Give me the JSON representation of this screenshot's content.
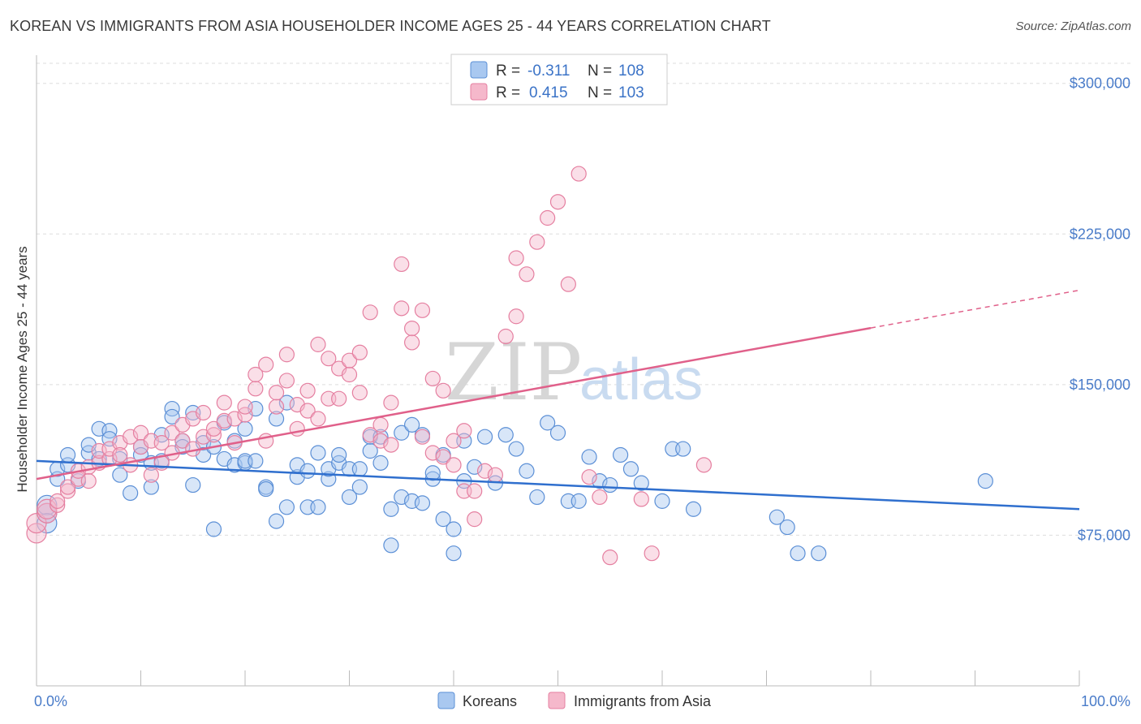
{
  "title": "KOREAN VS IMMIGRANTS FROM ASIA HOUSEHOLDER INCOME AGES 25 - 44 YEARS CORRELATION CHART",
  "source": "Source: ZipAtlas.com",
  "watermark": {
    "zip": "ZIP",
    "atlas": "atlas"
  },
  "legend": {
    "rows": [
      {
        "r_label": "R =",
        "r_value": "-0.311",
        "n_label": "N =",
        "n_value": "108"
      },
      {
        "r_label": "R =",
        "r_value": "0.415",
        "n_label": "N =",
        "n_value": "103"
      }
    ]
  },
  "colors": {
    "blue_fill": "#a9c8f0",
    "blue_stroke": "#5b8fd6",
    "blue_line": "#2f6fce",
    "pink_fill": "#f5b8cb",
    "pink_stroke": "#e57fa0",
    "pink_line": "#e0608a",
    "grid": "#dddddd",
    "tick_label": "#4a7cc9"
  },
  "chart_data": {
    "type": "scatter",
    "ylabel": "Householder Income Ages 25 - 44 years",
    "xlabel": "",
    "xlim": [
      0,
      100
    ],
    "ylim": [
      0,
      310000
    ],
    "y_ticks": [
      75000,
      150000,
      225000,
      300000
    ],
    "y_tick_labels": [
      "$75,000",
      "$150,000",
      "$225,000",
      "$300,000"
    ],
    "x_tick_labels": [
      "0.0%",
      "100.0%"
    ],
    "grid": "horizontal dashed",
    "legend_position": "top-center",
    "series": [
      {
        "name": "Koreans",
        "color": "#a9c8f0",
        "trend": {
          "x0": 0,
          "y0": 112000,
          "x1": 100,
          "y1": 88000,
          "dashed_from_x": null
        },
        "points": [
          [
            1,
            86000
          ],
          [
            1,
            90000
          ],
          [
            1,
            81000
          ],
          [
            2,
            103000
          ],
          [
            2,
            108000
          ],
          [
            3,
            110000
          ],
          [
            3,
            115000
          ],
          [
            4,
            102000
          ],
          [
            5,
            116000
          ],
          [
            5,
            120000
          ],
          [
            6,
            128000
          ],
          [
            6,
            113000
          ],
          [
            7,
            127000
          ],
          [
            7,
            123000
          ],
          [
            8,
            105000
          ],
          [
            8,
            113000
          ],
          [
            9,
            96000
          ],
          [
            10,
            119000
          ],
          [
            10,
            115000
          ],
          [
            11,
            111000
          ],
          [
            11,
            99000
          ],
          [
            12,
            125000
          ],
          [
            12,
            112000
          ],
          [
            13,
            138000
          ],
          [
            13,
            134000
          ],
          [
            14,
            122000
          ],
          [
            14,
            119000
          ],
          [
            15,
            136000
          ],
          [
            15,
            100000
          ],
          [
            16,
            121000
          ],
          [
            16,
            115000
          ],
          [
            17,
            119000
          ],
          [
            17,
            78000
          ],
          [
            18,
            113000
          ],
          [
            18,
            131000
          ],
          [
            19,
            122000
          ],
          [
            19,
            110000
          ],
          [
            20,
            111000
          ],
          [
            20,
            112000
          ],
          [
            20,
            128000
          ],
          [
            21,
            112000
          ],
          [
            21,
            138000
          ],
          [
            22,
            99000
          ],
          [
            22,
            98000
          ],
          [
            23,
            82000
          ],
          [
            23,
            133000
          ],
          [
            24,
            89000
          ],
          [
            24,
            141000
          ],
          [
            25,
            104000
          ],
          [
            25,
            110000
          ],
          [
            26,
            89000
          ],
          [
            26,
            107000
          ],
          [
            27,
            89000
          ],
          [
            27,
            116000
          ],
          [
            28,
            103000
          ],
          [
            28,
            108000
          ],
          [
            29,
            111000
          ],
          [
            29,
            115000
          ],
          [
            30,
            94000
          ],
          [
            30,
            108000
          ],
          [
            31,
            108000
          ],
          [
            31,
            99000
          ],
          [
            32,
            117000
          ],
          [
            32,
            124000
          ],
          [
            33,
            111000
          ],
          [
            33,
            124000
          ],
          [
            34,
            88000
          ],
          [
            34,
            70000
          ],
          [
            35,
            94000
          ],
          [
            35,
            126000
          ],
          [
            36,
            92000
          ],
          [
            36,
            130000
          ],
          [
            37,
            91000
          ],
          [
            37,
            125000
          ],
          [
            38,
            103000
          ],
          [
            38,
            106000
          ],
          [
            39,
            83000
          ],
          [
            39,
            115000
          ],
          [
            40,
            66000
          ],
          [
            40,
            78000
          ],
          [
            41,
            102000
          ],
          [
            41,
            122000
          ],
          [
            42,
            109000
          ],
          [
            43,
            124000
          ],
          [
            44,
            101000
          ],
          [
            45,
            125000
          ],
          [
            46,
            118000
          ],
          [
            47,
            107000
          ],
          [
            48,
            94000
          ],
          [
            49,
            131000
          ],
          [
            50,
            126000
          ],
          [
            51,
            92000
          ],
          [
            52,
            92000
          ],
          [
            53,
            114000
          ],
          [
            54,
            102000
          ],
          [
            55,
            100000
          ],
          [
            56,
            115000
          ],
          [
            57,
            108000
          ],
          [
            58,
            101000
          ],
          [
            60,
            92000
          ],
          [
            61,
            118000
          ],
          [
            62,
            118000
          ],
          [
            63,
            88000
          ],
          [
            71,
            84000
          ],
          [
            72,
            79000
          ],
          [
            73,
            66000
          ],
          [
            75,
            66000
          ],
          [
            91,
            102000
          ]
        ]
      },
      {
        "name": "Immigrants from Asia",
        "color": "#f5b8cb",
        "trend": {
          "x0": 0,
          "y0": 103000,
          "x1": 100,
          "y1": 197000,
          "dashed_from_x": 80
        },
        "points": [
          [
            0,
            76000
          ],
          [
            0,
            81000
          ],
          [
            1,
            86000
          ],
          [
            1,
            88000
          ],
          [
            2,
            90000
          ],
          [
            2,
            92000
          ],
          [
            3,
            97000
          ],
          [
            3,
            99000
          ],
          [
            4,
            103000
          ],
          [
            4,
            107000
          ],
          [
            5,
            109000
          ],
          [
            5,
            102000
          ],
          [
            6,
            111000
          ],
          [
            6,
            117000
          ],
          [
            7,
            113000
          ],
          [
            7,
            118000
          ],
          [
            8,
            121000
          ],
          [
            8,
            115000
          ],
          [
            9,
            124000
          ],
          [
            9,
            110000
          ],
          [
            10,
            126000
          ],
          [
            10,
            119000
          ],
          [
            11,
            122000
          ],
          [
            11,
            105000
          ],
          [
            12,
            121000
          ],
          [
            12,
            111000
          ],
          [
            13,
            116000
          ],
          [
            13,
            126000
          ],
          [
            14,
            122000
          ],
          [
            14,
            130000
          ],
          [
            15,
            118000
          ],
          [
            15,
            133000
          ],
          [
            16,
            124000
          ],
          [
            16,
            136000
          ],
          [
            17,
            125000
          ],
          [
            17,
            128000
          ],
          [
            18,
            132000
          ],
          [
            18,
            141000
          ],
          [
            19,
            121000
          ],
          [
            19,
            133000
          ],
          [
            20,
            135000
          ],
          [
            20,
            139000
          ],
          [
            21,
            148000
          ],
          [
            21,
            155000
          ],
          [
            22,
            160000
          ],
          [
            22,
            122000
          ],
          [
            23,
            139000
          ],
          [
            23,
            146000
          ],
          [
            24,
            152000
          ],
          [
            24,
            165000
          ],
          [
            25,
            140000
          ],
          [
            25,
            128000
          ],
          [
            26,
            137000
          ],
          [
            26,
            147000
          ],
          [
            27,
            170000
          ],
          [
            27,
            133000
          ],
          [
            28,
            163000
          ],
          [
            28,
            143000
          ],
          [
            29,
            158000
          ],
          [
            29,
            143000
          ],
          [
            30,
            155000
          ],
          [
            30,
            162000
          ],
          [
            31,
            146000
          ],
          [
            31,
            166000
          ],
          [
            32,
            186000
          ],
          [
            32,
            125000
          ],
          [
            33,
            130000
          ],
          [
            33,
            122000
          ],
          [
            34,
            141000
          ],
          [
            34,
            120000
          ],
          [
            35,
            188000
          ],
          [
            35,
            210000
          ],
          [
            36,
            178000
          ],
          [
            36,
            171000
          ],
          [
            37,
            187000
          ],
          [
            37,
            124000
          ],
          [
            38,
            116000
          ],
          [
            38,
            153000
          ],
          [
            39,
            114000
          ],
          [
            39,
            147000
          ],
          [
            40,
            110000
          ],
          [
            40,
            122000
          ],
          [
            41,
            127000
          ],
          [
            41,
            97000
          ],
          [
            42,
            83000
          ],
          [
            42,
            97000
          ],
          [
            43,
            107000
          ],
          [
            44,
            105000
          ],
          [
            45,
            174000
          ],
          [
            46,
            184000
          ],
          [
            46,
            213000
          ],
          [
            47,
            205000
          ],
          [
            48,
            221000
          ],
          [
            49,
            233000
          ],
          [
            50,
            241000
          ],
          [
            51,
            200000
          ],
          [
            52,
            255000
          ],
          [
            53,
            104000
          ],
          [
            54,
            94000
          ],
          [
            55,
            64000
          ],
          [
            58,
            93000
          ],
          [
            59,
            66000
          ],
          [
            64,
            110000
          ]
        ]
      }
    ]
  }
}
